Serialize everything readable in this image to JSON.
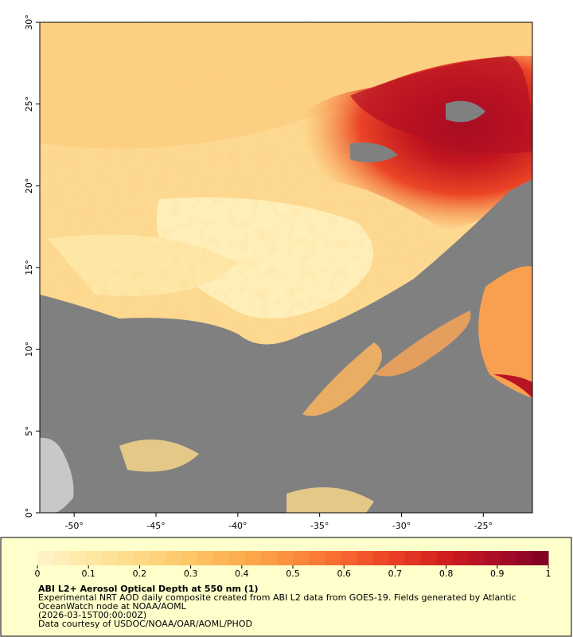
{
  "map": {
    "xlim": [
      -52.1,
      -22
    ],
    "ylim": [
      0,
      30
    ],
    "xticks": [
      {
        "value": -50,
        "label": "-50°"
      },
      {
        "value": -45,
        "label": "-45°"
      },
      {
        "value": -40,
        "label": "-40°"
      },
      {
        "value": -35,
        "label": "-35°"
      },
      {
        "value": -30,
        "label": "-30°"
      },
      {
        "value": -25,
        "label": "-25°"
      }
    ],
    "yticks": [
      {
        "value": 0,
        "label": "0°"
      },
      {
        "value": 5,
        "label": "5°"
      },
      {
        "value": 10,
        "label": "10°"
      },
      {
        "value": 15,
        "label": "15°"
      },
      {
        "value": 20,
        "label": "20°"
      },
      {
        "value": 25,
        "label": "25°"
      },
      {
        "value": 30,
        "label": "30°"
      }
    ]
  },
  "colorbar": {
    "lim": [
      0,
      1
    ],
    "ticks": [
      0,
      0.1,
      0.2,
      0.3,
      0.4,
      0.5,
      0.6,
      0.7,
      0.8,
      0.9,
      1
    ],
    "colors": [
      "#fff4c8",
      "#fee8a4",
      "#fed985",
      "#fdc566",
      "#fdac4c",
      "#fc8d3c",
      "#f8672f",
      "#ea3f24",
      "#d01e20",
      "#a90d26",
      "#7f0025"
    ]
  },
  "caption": {
    "title": "ABI L2+ Aerosol Optical Depth at 550 nm (1)",
    "lines": [
      "Experimental NRT AOD daily composite created from ABI L2 data from GOES-19. Fields generated by Atlantic",
      "OceanWatch node at NOAA/AOML",
      "(2026-03-15T00:00:00Z)",
      "Data courtesy of USDOC/NOAA/OAR/AOML/PHOD"
    ]
  }
}
